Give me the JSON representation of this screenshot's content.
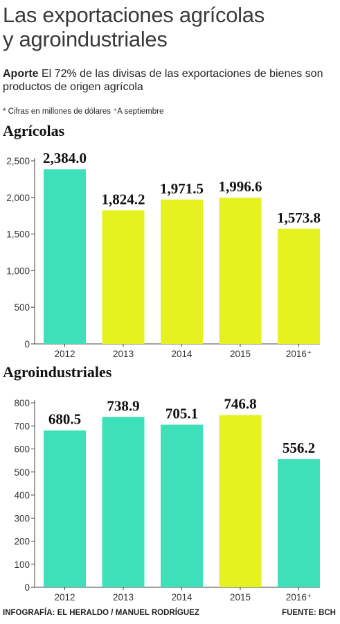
{
  "header": {
    "title_line1": "Las exportaciones agrícolas",
    "title_line2": "y agroindustriales",
    "lead_bold": "Aporte",
    "lead_text": " El 72% de las divisas de las exportaciones de bienes son productos de origen agrícola",
    "note": "* Cifras en millones de dólares ⁺A septiembre"
  },
  "colors": {
    "teal": "#3de0b8",
    "yellow": "#e6f21f"
  },
  "chart_data": [
    {
      "type": "bar",
      "title": "Agrícolas",
      "categories": [
        "2012",
        "2013",
        "2014",
        "2015",
        "2016⁺"
      ],
      "values": [
        2384.0,
        1824.2,
        1971.5,
        1996.6,
        1573.8
      ],
      "value_labels": [
        "2,384.0",
        "1,824.2",
        "1,971.5",
        "1,996.6",
        "1,573.8"
      ],
      "bar_colors": [
        "teal",
        "yellow",
        "yellow",
        "yellow",
        "yellow"
      ],
      "ylim": [
        0,
        2500
      ],
      "yticks": [
        0,
        500,
        1000,
        1500,
        2000,
        2500
      ],
      "ytick_labels": [
        "0",
        "500",
        "1,000",
        "1,500",
        "2,000",
        "2,500"
      ]
    },
    {
      "type": "bar",
      "title": "Agroindustriales",
      "categories": [
        "2012",
        "2013",
        "2014",
        "2015",
        "2016⁺"
      ],
      "values": [
        680.5,
        738.9,
        705.1,
        746.8,
        556.2
      ],
      "value_labels": [
        "680.5",
        "738.9",
        "705.1",
        "746.8",
        "556.2"
      ],
      "bar_colors": [
        "teal",
        "teal",
        "teal",
        "yellow",
        "teal"
      ],
      "ylim": [
        0,
        800
      ],
      "yticks": [
        0,
        100,
        200,
        300,
        400,
        500,
        600,
        700,
        800
      ],
      "ytick_labels": [
        "0",
        "100",
        "200",
        "300",
        "400",
        "500",
        "600",
        "700",
        "800"
      ]
    }
  ],
  "footer": {
    "credit": "INFOGRAFÍA: EL HERALDO / MANUEL RODRÍGUEZ",
    "source": "FUENTE: BCH"
  }
}
